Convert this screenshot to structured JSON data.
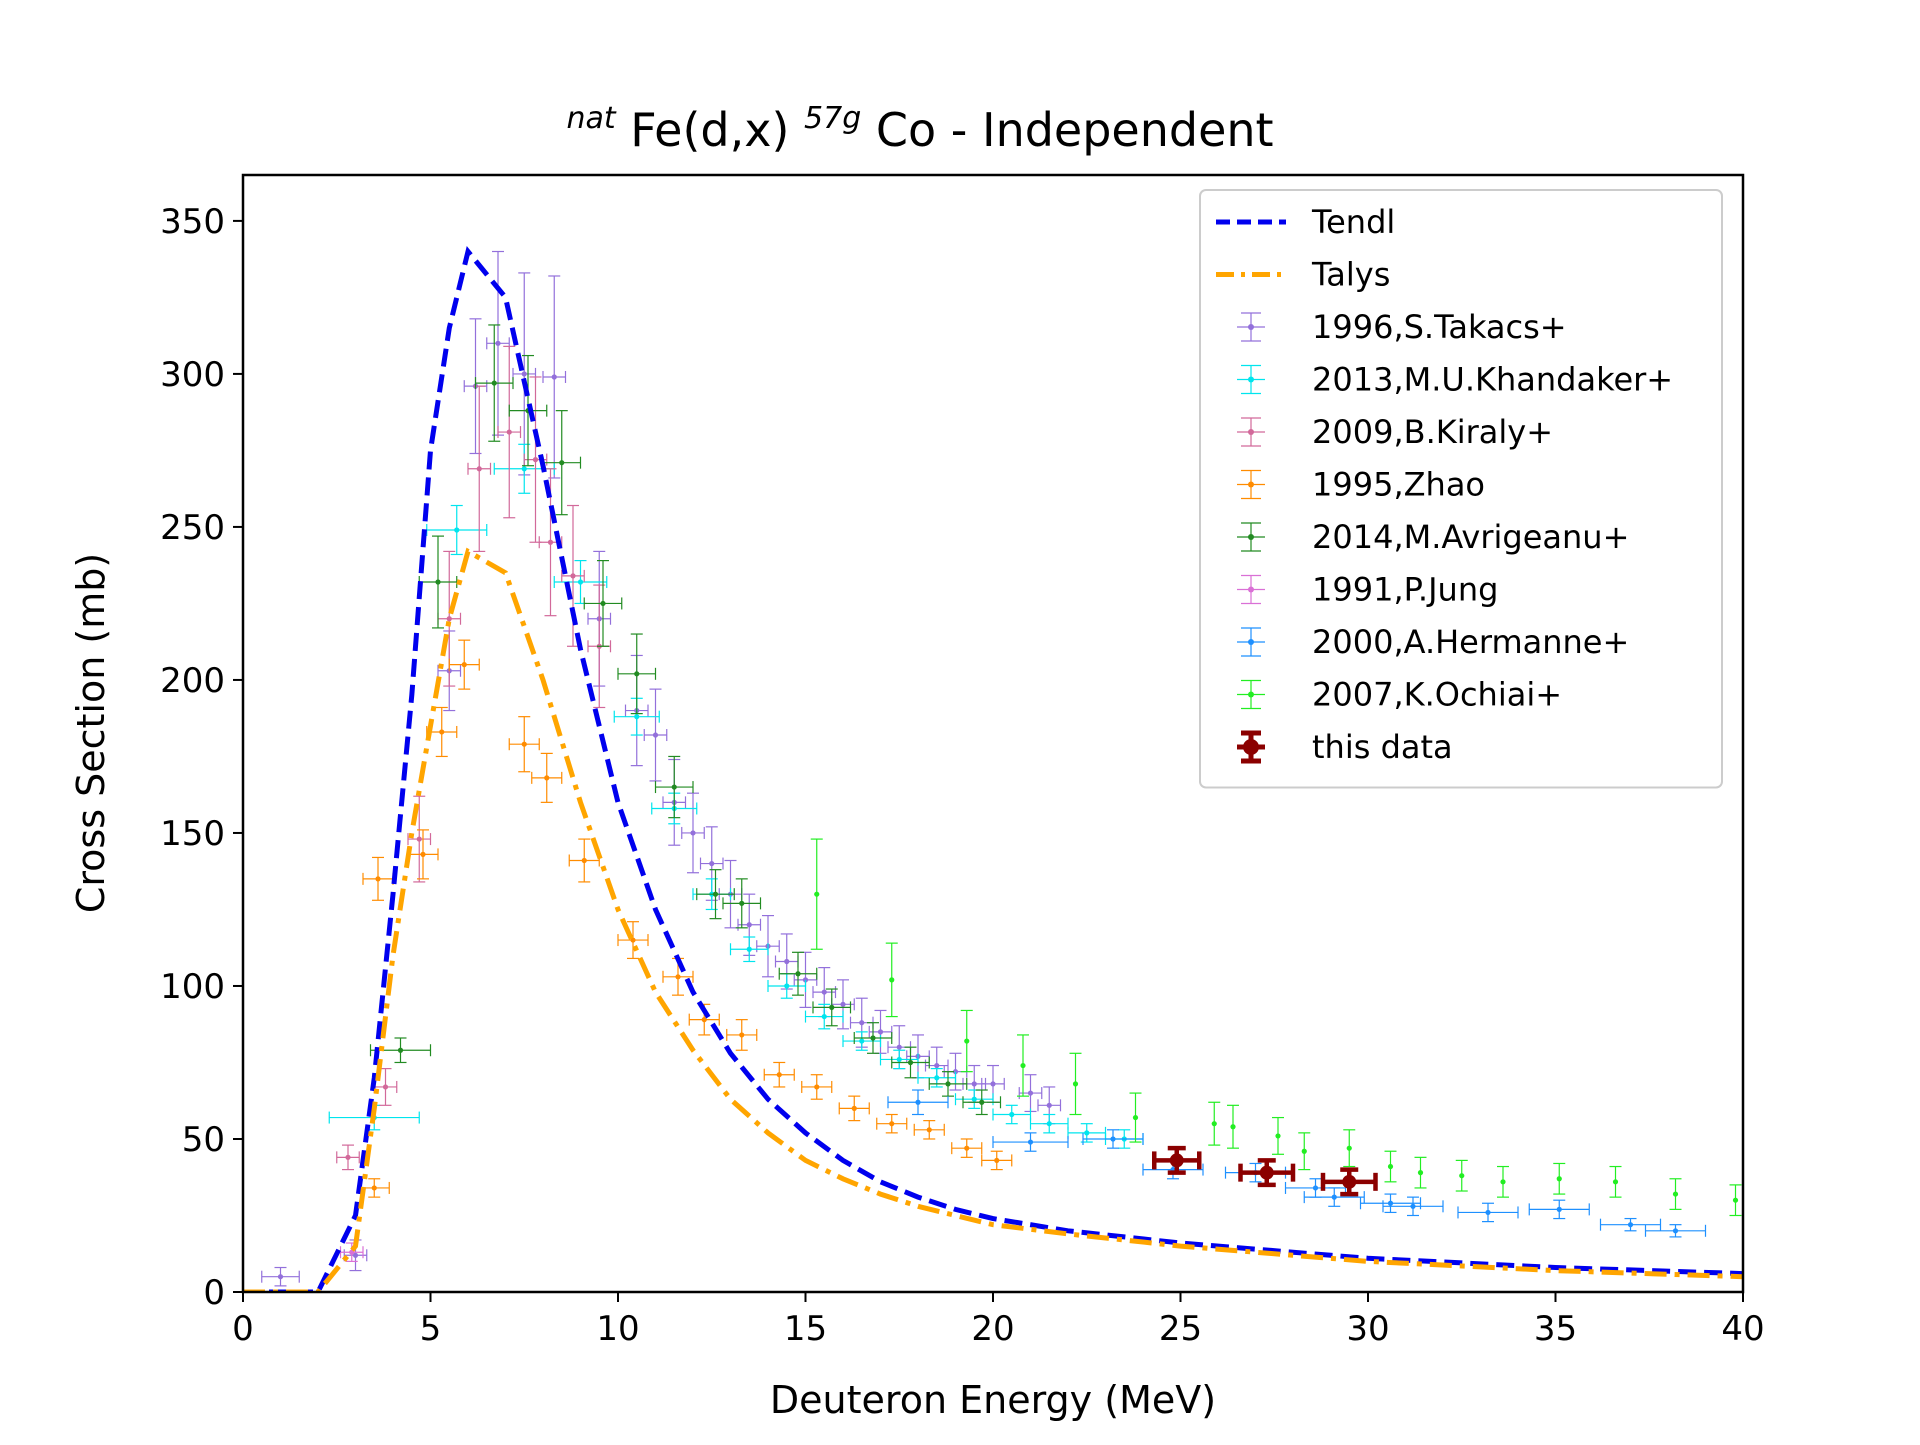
{
  "chart_data": {
    "type": "scatter",
    "title": {
      "sup1": "nat",
      "main1": "Fe(d,x)",
      "sup2": "57g",
      "main2": "Co - Independent"
    },
    "xlabel": "Deuteron Energy (MeV)",
    "ylabel": "Cross Section (mb)",
    "xlim": [
      0,
      40
    ],
    "ylim": [
      0,
      365
    ],
    "xticks": [
      "0",
      "5",
      "10",
      "15",
      "20",
      "25",
      "30",
      "35",
      "40"
    ],
    "yticks": [
      "0",
      "50",
      "100",
      "150",
      "200",
      "250",
      "300",
      "350"
    ],
    "grid": false,
    "legend_position": "top-right",
    "curves": [
      {
        "name": "Tendl",
        "color": "#0000ee",
        "style": "dashed",
        "points": [
          [
            0,
            0
          ],
          [
            2,
            0
          ],
          [
            3,
            25
          ],
          [
            3.5,
            70
          ],
          [
            4,
            130
          ],
          [
            4.5,
            195
          ],
          [
            5,
            275
          ],
          [
            5.5,
            315
          ],
          [
            6,
            340
          ],
          [
            7,
            325
          ],
          [
            8,
            270
          ],
          [
            9,
            210
          ],
          [
            10,
            160
          ],
          [
            11,
            125
          ],
          [
            12,
            98
          ],
          [
            13,
            78
          ],
          [
            14,
            63
          ],
          [
            15,
            52
          ],
          [
            16,
            43
          ],
          [
            17,
            36
          ],
          [
            18,
            31
          ],
          [
            19,
            27
          ],
          [
            20,
            24
          ],
          [
            22,
            20
          ],
          [
            25,
            16
          ],
          [
            28,
            13
          ],
          [
            30,
            11
          ],
          [
            35,
            8
          ],
          [
            40,
            6
          ]
        ]
      },
      {
        "name": "Talys",
        "color": "#ffa500",
        "style": "dashdot",
        "points": [
          [
            0,
            0
          ],
          [
            2,
            0
          ],
          [
            3,
            15
          ],
          [
            3.5,
            60
          ],
          [
            4,
            110
          ],
          [
            4.5,
            150
          ],
          [
            5,
            185
          ],
          [
            5.5,
            220
          ],
          [
            6,
            242
          ],
          [
            7,
            235
          ],
          [
            8,
            200
          ],
          [
            9,
            160
          ],
          [
            10,
            125
          ],
          [
            11,
            98
          ],
          [
            12,
            79
          ],
          [
            13,
            63
          ],
          [
            14,
            52
          ],
          [
            15,
            43
          ],
          [
            16,
            37
          ],
          [
            17,
            32
          ],
          [
            18,
            28
          ],
          [
            19,
            25
          ],
          [
            20,
            22
          ],
          [
            22,
            19
          ],
          [
            25,
            15
          ],
          [
            28,
            12
          ],
          [
            30,
            10
          ],
          [
            35,
            7
          ],
          [
            40,
            5
          ]
        ]
      }
    ],
    "series": [
      {
        "name": "1996,S.Takacs+",
        "color": "#9370db",
        "points": [
          [
            1,
            5,
            0.5,
            3
          ],
          [
            3,
            12,
            0.3,
            5
          ],
          [
            5.5,
            203,
            0.3,
            13
          ],
          [
            6.2,
            296,
            0.3,
            22
          ],
          [
            6.8,
            310,
            0.3,
            30
          ],
          [
            7.5,
            300,
            0.3,
            33
          ],
          [
            8.3,
            299,
            0.3,
            33
          ],
          [
            9.5,
            220,
            0.3,
            22
          ],
          [
            10.5,
            190,
            0.3,
            18
          ],
          [
            11,
            182,
            0.3,
            15
          ],
          [
            11.5,
            160,
            0.3,
            14
          ],
          [
            12,
            150,
            0.3,
            13
          ],
          [
            12.5,
            140,
            0.3,
            12
          ],
          [
            13,
            130,
            0.3,
            11
          ],
          [
            13.5,
            120,
            0.3,
            10
          ],
          [
            14,
            113,
            0.3,
            10
          ],
          [
            14.5,
            108,
            0.3,
            9
          ],
          [
            15,
            102,
            0.3,
            9
          ],
          [
            15.5,
            98,
            0.3,
            8
          ],
          [
            16,
            94,
            0.3,
            8
          ],
          [
            16.5,
            88,
            0.3,
            8
          ],
          [
            17,
            85,
            0.3,
            7
          ],
          [
            17.5,
            80,
            0.3,
            7
          ],
          [
            18,
            77,
            0.3,
            7
          ],
          [
            18.5,
            74,
            0.3,
            6
          ],
          [
            19,
            72,
            0.3,
            6
          ],
          [
            19.5,
            68,
            0.3,
            6
          ],
          [
            20,
            68,
            0.3,
            6
          ],
          [
            21,
            65,
            0.3,
            6
          ],
          [
            21.5,
            61,
            0.3,
            6
          ]
        ]
      },
      {
        "name": "2013,M.U.Khandaker+",
        "color": "#00e5ee",
        "points": [
          [
            3.5,
            57,
            1.2,
            4
          ],
          [
            5.7,
            249,
            0.8,
            8
          ],
          [
            7.5,
            269,
            0.8,
            8
          ],
          [
            9,
            232,
            0.7,
            7
          ],
          [
            10.5,
            188,
            0.6,
            6
          ],
          [
            11.5,
            158,
            0.6,
            5
          ],
          [
            12.5,
            130,
            0.5,
            5
          ],
          [
            13.5,
            112,
            0.5,
            4
          ],
          [
            14.5,
            100,
            0.5,
            4
          ],
          [
            15.5,
            90,
            0.5,
            4
          ],
          [
            16.5,
            82,
            0.5,
            3
          ],
          [
            17.5,
            76,
            0.5,
            3
          ],
          [
            18.5,
            70,
            0.5,
            3
          ],
          [
            19.5,
            63,
            0.5,
            3
          ],
          [
            20.5,
            58,
            0.5,
            3
          ],
          [
            21.5,
            55,
            0.5,
            3
          ],
          [
            22.5,
            52,
            0.5,
            3
          ],
          [
            23.5,
            50,
            0.5,
            3
          ]
        ]
      },
      {
        "name": "2009,B.Kiraly+",
        "color": "#d2699a",
        "points": [
          [
            2.8,
            44,
            0.3,
            4
          ],
          [
            3.8,
            67,
            0.3,
            6
          ],
          [
            4.7,
            148,
            0.3,
            14
          ],
          [
            5.5,
            220,
            0.3,
            22
          ],
          [
            6.3,
            269,
            0.3,
            27
          ],
          [
            7.1,
            281,
            0.3,
            28
          ],
          [
            7.8,
            272,
            0.3,
            27
          ],
          [
            8.2,
            245,
            0.3,
            24
          ],
          [
            8.8,
            234,
            0.3,
            23
          ],
          [
            9.5,
            211,
            0.3,
            20
          ]
        ]
      },
      {
        "name": "1995,Zhao",
        "color": "#ff8c00",
        "points": [
          [
            3.5,
            34,
            0.4,
            3
          ],
          [
            3.6,
            135,
            0.4,
            7
          ],
          [
            4.8,
            143,
            0.4,
            8
          ],
          [
            5.3,
            183,
            0.4,
            8
          ],
          [
            5.9,
            205,
            0.4,
            8
          ],
          [
            7.5,
            179,
            0.4,
            9
          ],
          [
            8.1,
            168,
            0.4,
            8
          ],
          [
            9.1,
            141,
            0.4,
            7
          ],
          [
            10.4,
            115,
            0.4,
            6
          ],
          [
            11.6,
            103,
            0.4,
            6
          ],
          [
            12.3,
            89,
            0.4,
            5
          ],
          [
            13.3,
            84,
            0.4,
            5
          ],
          [
            14.3,
            71,
            0.4,
            4
          ],
          [
            15.3,
            67,
            0.4,
            4
          ],
          [
            16.3,
            60,
            0.4,
            4
          ],
          [
            17.3,
            55,
            0.4,
            3
          ],
          [
            18.3,
            53,
            0.4,
            3
          ],
          [
            19.3,
            47,
            0.4,
            3
          ],
          [
            20.1,
            43,
            0.4,
            3
          ]
        ]
      },
      {
        "name": "2014,M.Avrigeanu+",
        "color": "#228b22",
        "points": [
          [
            4.2,
            79,
            0.8,
            4
          ],
          [
            5.2,
            232,
            0.5,
            15
          ],
          [
            6.7,
            297,
            0.5,
            19
          ],
          [
            7.6,
            288,
            0.5,
            18
          ],
          [
            8.5,
            271,
            0.5,
            17
          ],
          [
            9.6,
            225,
            0.5,
            14
          ],
          [
            10.5,
            202,
            0.5,
            13
          ],
          [
            11.5,
            165,
            0.5,
            10
          ],
          [
            12.6,
            130,
            0.5,
            8
          ],
          [
            13.3,
            127,
            0.5,
            8
          ],
          [
            14.8,
            104,
            0.5,
            7
          ],
          [
            15.7,
            93,
            0.5,
            6
          ],
          [
            16.8,
            83,
            0.5,
            5
          ],
          [
            17.8,
            75,
            0.5,
            5
          ],
          [
            18.8,
            68,
            0.5,
            4
          ],
          [
            19.7,
            62,
            0.5,
            4
          ]
        ]
      },
      {
        "name": "1991,P.Jung",
        "color": "#da70d6",
        "points": [
          [
            2.9,
            13,
            0.3,
            3
          ]
        ]
      },
      {
        "name": "2000,A.Hermanne+",
        "color": "#1e90ff",
        "points": [
          [
            18,
            62,
            0.8,
            4
          ],
          [
            21,
            49,
            1,
            3
          ],
          [
            23.2,
            50,
            0.8,
            3
          ],
          [
            24.8,
            40,
            0.8,
            3
          ],
          [
            27,
            39,
            0.8,
            3
          ],
          [
            28.6,
            34,
            0.8,
            3
          ],
          [
            29.1,
            31,
            0.8,
            3
          ],
          [
            30.6,
            29,
            0.8,
            3
          ],
          [
            31.2,
            28,
            0.8,
            3
          ],
          [
            33.2,
            26,
            0.8,
            3
          ],
          [
            35.1,
            27,
            0.8,
            3
          ],
          [
            37,
            22,
            0.8,
            2
          ],
          [
            38.2,
            20,
            0.8,
            2
          ]
        ]
      },
      {
        "name": "2007,K.Ochiai+",
        "color": "#22ee22",
        "points": [
          [
            15.3,
            130,
            0,
            18
          ],
          [
            17.3,
            102,
            0,
            12
          ],
          [
            19.3,
            82,
            0,
            10
          ],
          [
            20.8,
            74,
            0,
            10
          ],
          [
            22.2,
            68,
            0,
            10
          ],
          [
            23.8,
            57,
            0,
            8
          ],
          [
            25.9,
            55,
            0,
            7
          ],
          [
            26.4,
            54,
            0,
            7
          ],
          [
            27.6,
            51,
            0,
            6
          ],
          [
            28.3,
            46,
            0,
            6
          ],
          [
            29.5,
            47,
            0,
            6
          ],
          [
            30.6,
            41,
            0,
            5
          ],
          [
            31.4,
            39,
            0,
            5
          ],
          [
            32.5,
            38,
            0,
            5
          ],
          [
            33.6,
            36,
            0,
            5
          ],
          [
            35.1,
            37,
            0,
            5
          ],
          [
            36.6,
            36,
            0,
            5
          ],
          [
            38.2,
            32,
            0,
            5
          ],
          [
            39.8,
            30,
            0,
            5
          ]
        ]
      },
      {
        "name": "this data",
        "color": "#8b0000",
        "points": [
          [
            24.9,
            43,
            0.6,
            4
          ],
          [
            27.3,
            39,
            0.7,
            4
          ],
          [
            29.5,
            36,
            0.7,
            4
          ]
        ]
      }
    ]
  }
}
